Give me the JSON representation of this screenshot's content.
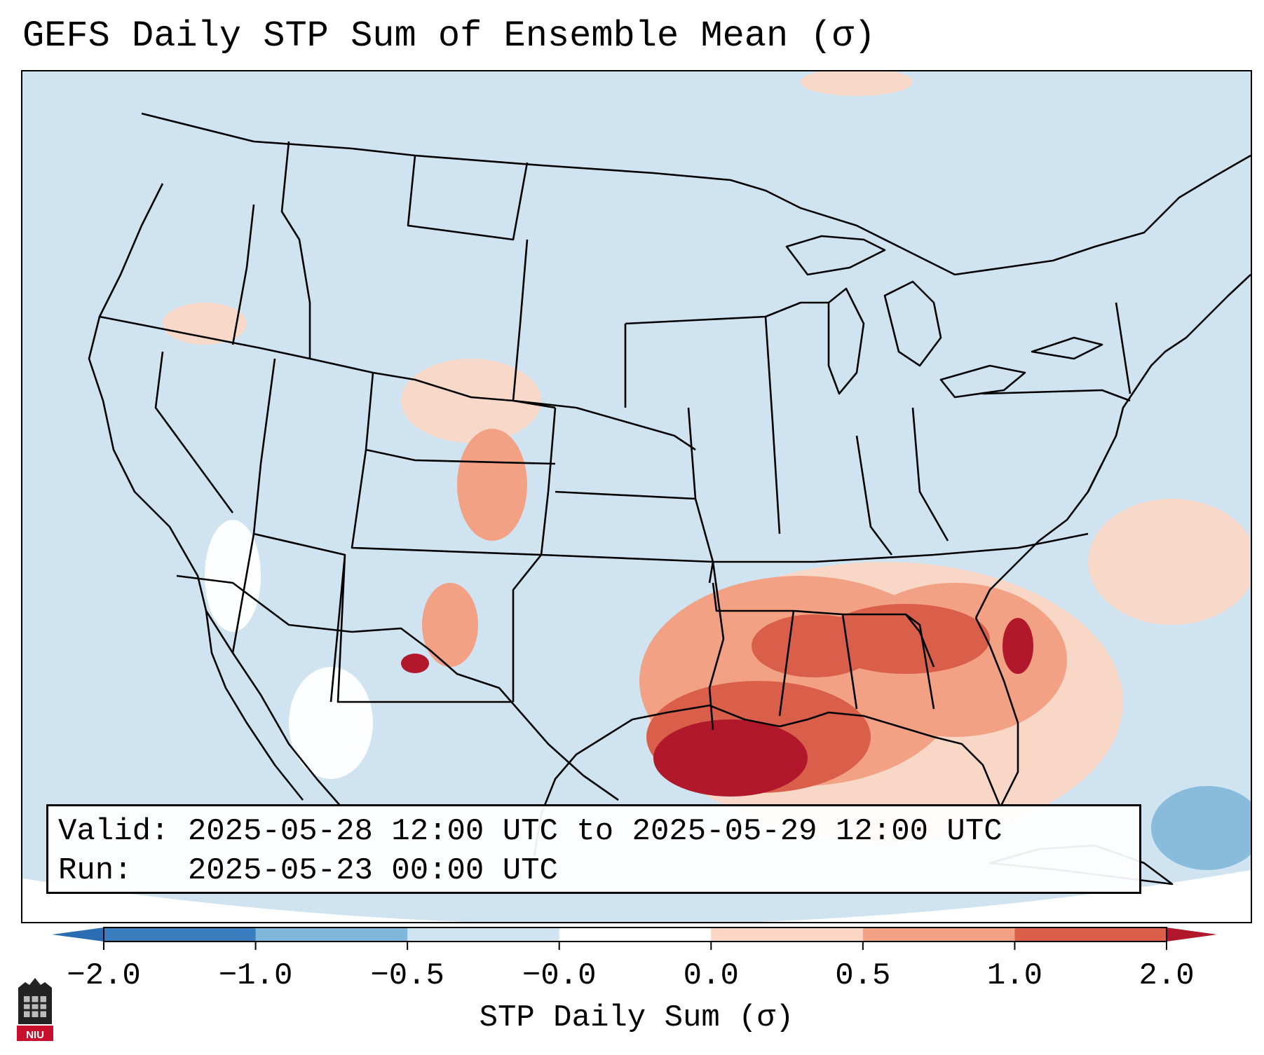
{
  "title": "GEFS Daily STP Sum of Ensemble Mean (σ)",
  "info": {
    "valid_label": "Valid:",
    "valid_value": "2025-05-28 12:00 UTC to 2025-05-29 12:00 UTC",
    "run_label": "Run:",
    "run_value": "2025-05-23 00:00 UTC"
  },
  "colorbar": {
    "label": "STP Daily Sum (σ)",
    "ticks": [
      "−2.0",
      "−1.0",
      "−0.5",
      "−0.0",
      "0.0",
      "0.5",
      "1.0",
      "2.0"
    ],
    "bins": [
      {
        "color": "#3a7ebf"
      },
      {
        "color": "#7fb6d9"
      },
      {
        "color": "#cfe3f0"
      },
      {
        "color": "#ffffff"
      },
      {
        "color": "#fbd6c4"
      },
      {
        "color": "#f3a184"
      },
      {
        "color": "#d95f4a"
      }
    ],
    "under_color": "#2a6db2",
    "over_color": "#b2182b"
  },
  "map": {
    "background_color": "#cfe3f0",
    "outside_color": "#ffffff",
    "line_color": "#000000"
  },
  "logo": {
    "text": "NIU"
  }
}
